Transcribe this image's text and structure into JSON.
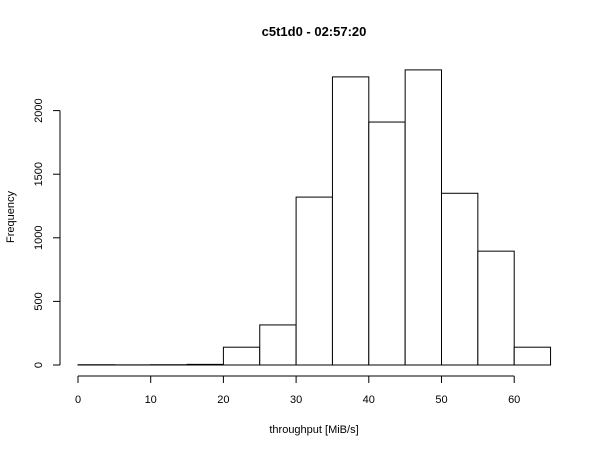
{
  "chart_data": {
    "type": "bar",
    "title": "c5t1d0 - 02:57:20",
    "xlabel": "throughput [MiB/s]",
    "ylabel": "Frequency",
    "bins": [
      {
        "start": 0,
        "end": 5,
        "count": 2
      },
      {
        "start": 5,
        "end": 10,
        "count": 1
      },
      {
        "start": 10,
        "end": 15,
        "count": 2
      },
      {
        "start": 15,
        "end": 20,
        "count": 5
      },
      {
        "start": 20,
        "end": 25,
        "count": 140
      },
      {
        "start": 25,
        "end": 30,
        "count": 315
      },
      {
        "start": 30,
        "end": 35,
        "count": 1320
      },
      {
        "start": 35,
        "end": 40,
        "count": 2265
      },
      {
        "start": 40,
        "end": 45,
        "count": 1910
      },
      {
        "start": 45,
        "end": 50,
        "count": 2320
      },
      {
        "start": 50,
        "end": 55,
        "count": 1350
      },
      {
        "start": 55,
        "end": 60,
        "count": 895
      },
      {
        "start": 60,
        "end": 65,
        "count": 140
      }
    ],
    "xlim": [
      0,
      65
    ],
    "ylim": [
      0,
      2320
    ],
    "x_ticks": [
      "0",
      "10",
      "20",
      "30",
      "40",
      "50",
      "60"
    ],
    "y_ticks": [
      "0",
      "500",
      "1000",
      "1500",
      "2000"
    ],
    "grid": false,
    "legend": "none"
  }
}
